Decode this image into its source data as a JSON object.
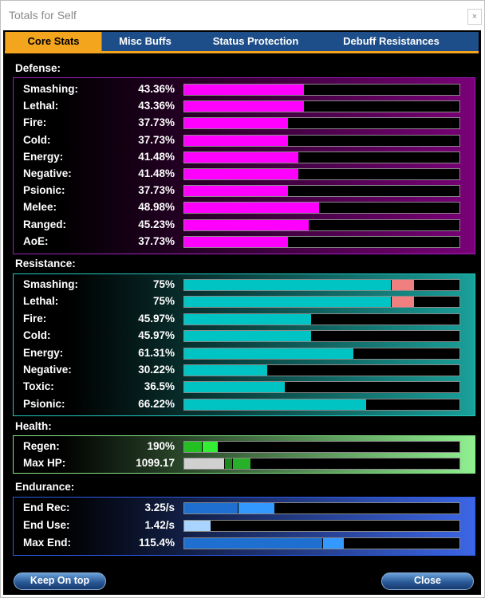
{
  "window": {
    "title": "Totals for Self",
    "close_glyph": "×"
  },
  "tabs": [
    {
      "label": "Core Stats",
      "active": true
    },
    {
      "label": "Misc Buffs",
      "active": false
    },
    {
      "label": "Status Protection",
      "active": false
    },
    {
      "label": "Debuff Resistances",
      "active": false
    }
  ],
  "colors": {
    "defense_bar": "#ff00ff",
    "resistance_bar": "#00c4c4",
    "resistance_cap_over": "#f08080",
    "health_regen": "#2cd62c",
    "health_hp_base": "#d0d0d0",
    "endurance_bar": "#1e6fd0",
    "tab_active": "#f3a51e"
  },
  "defense": {
    "title": "Defense:",
    "rows": [
      {
        "label": "Smashing:",
        "value": "43.36%",
        "fill": 0.4336
      },
      {
        "label": "Lethal:",
        "value": "43.36%",
        "fill": 0.4336
      },
      {
        "label": "Fire:",
        "value": "37.73%",
        "fill": 0.3773
      },
      {
        "label": "Cold:",
        "value": "37.73%",
        "fill": 0.3773
      },
      {
        "label": "Energy:",
        "value": "41.48%",
        "fill": 0.4148
      },
      {
        "label": "Negative:",
        "value": "41.48%",
        "fill": 0.4148
      },
      {
        "label": "Psionic:",
        "value": "37.73%",
        "fill": 0.3773
      },
      {
        "label": "Melee:",
        "value": "48.98%",
        "fill": 0.4898
      },
      {
        "label": "Ranged:",
        "value": "45.23%",
        "fill": 0.4523
      },
      {
        "label": "AoE:",
        "value": "37.73%",
        "fill": 0.3773
      }
    ]
  },
  "resistance": {
    "title": "Resistance:",
    "rows": [
      {
        "label": "Smashing:",
        "value": "75%",
        "fill": 0.75,
        "over": 0.08
      },
      {
        "label": "Lethal:",
        "value": "75%",
        "fill": 0.75,
        "over": 0.08
      },
      {
        "label": "Fire:",
        "value": "45.97%",
        "fill": 0.4597,
        "over": 0
      },
      {
        "label": "Cold:",
        "value": "45.97%",
        "fill": 0.4597,
        "over": 0
      },
      {
        "label": "Energy:",
        "value": "61.31%",
        "fill": 0.6131,
        "over": 0
      },
      {
        "label": "Negative:",
        "value": "30.22%",
        "fill": 0.3022,
        "over": 0
      },
      {
        "label": "Toxic:",
        "value": "36.5%",
        "fill": 0.365,
        "over": 0
      },
      {
        "label": "Psionic:",
        "value": "66.22%",
        "fill": 0.6622,
        "over": 0
      }
    ]
  },
  "health": {
    "title": "Health:",
    "rows": [
      {
        "label": "Regen:",
        "value": "190%",
        "segments": [
          {
            "fill": 0.065,
            "color": "#22c022"
          },
          {
            "fill": 0.055,
            "color": "#33ee33"
          }
        ]
      },
      {
        "label": "Max HP:",
        "value": "1099.17",
        "segments": [
          {
            "fill": 0.145,
            "color": "#d0d0d0"
          },
          {
            "fill": 0.03,
            "color": "#1e8a1e"
          },
          {
            "fill": 0.065,
            "color": "#28b028"
          }
        ]
      }
    ]
  },
  "endurance": {
    "title": "Endurance:",
    "rows": [
      {
        "label": "End Rec:",
        "value": "3.25/s",
        "segments": [
          {
            "fill": 0.195,
            "color": "#1e6fd0"
          },
          {
            "fill": 0.13,
            "color": "#3399ff"
          }
        ]
      },
      {
        "label": "End Use:",
        "value": "1.42/s",
        "segments": [
          {
            "fill": 0.095,
            "color": "#a8d4ff"
          }
        ]
      },
      {
        "label": "Max End:",
        "value": "115.4%",
        "segments": [
          {
            "fill": 0.5,
            "color": "#1e6fd0"
          },
          {
            "fill": 0.075,
            "color": "#3399ff"
          }
        ]
      }
    ]
  },
  "buttons": {
    "keep_on_top": "Keep On top",
    "close": "Close"
  }
}
